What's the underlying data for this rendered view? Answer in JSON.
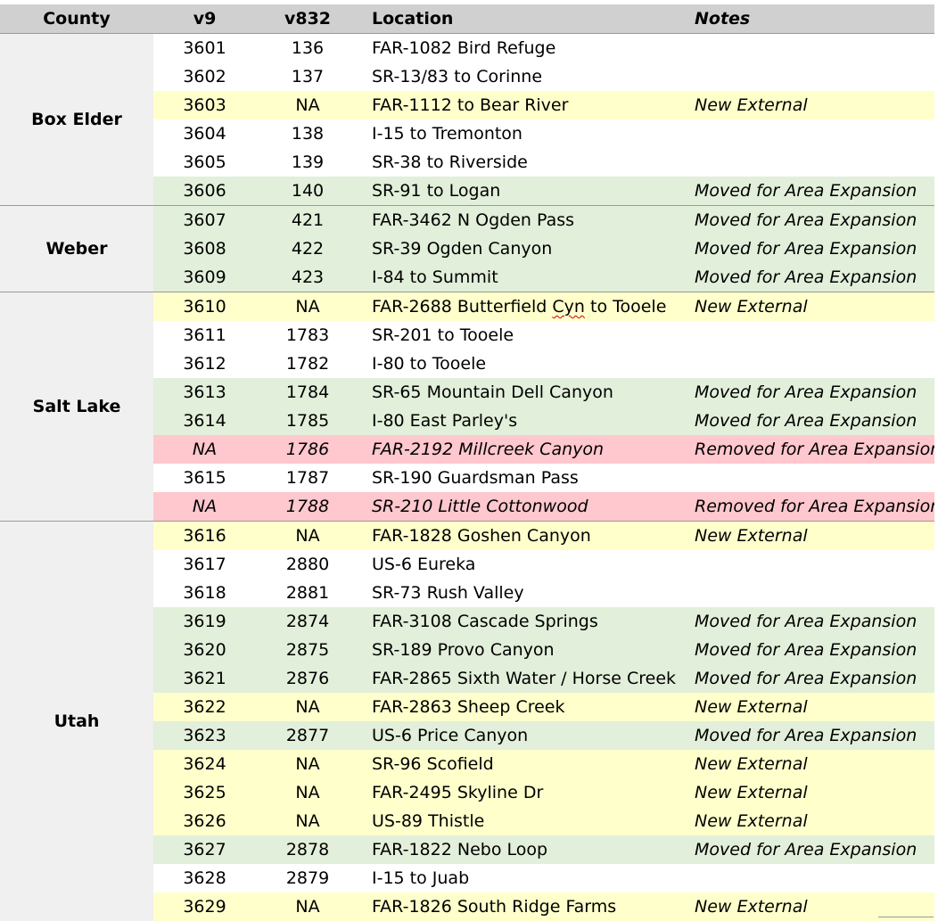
{
  "headers": {
    "county": "County",
    "v9": "v9",
    "v832": "v832",
    "location": "Location",
    "notes": "Notes"
  },
  "colors": {
    "header": "#d0d0d0",
    "county_cell": "#f0f0f0",
    "new_external": "#ffffcc",
    "moved": "#e2efda",
    "removed": "#ffc7ce"
  },
  "groups": [
    {
      "county": "Box Elder",
      "rows": [
        {
          "v9": "3601",
          "v832": "136",
          "location": "FAR-1082 Bird Refuge",
          "notes": "",
          "status": "plain"
        },
        {
          "v9": "3602",
          "v832": "137",
          "location": "SR-13/83 to Corinne",
          "notes": "",
          "status": "plain"
        },
        {
          "v9": "3603",
          "v832": "NA",
          "location": "FAR-1112 to Bear River",
          "notes": "New External",
          "status": "new"
        },
        {
          "v9": "3604",
          "v832": "138",
          "location": "I-15 to Tremonton",
          "notes": "",
          "status": "plain"
        },
        {
          "v9": "3605",
          "v832": "139",
          "location": "SR-38 to Riverside",
          "notes": "",
          "status": "plain"
        },
        {
          "v9": "3606",
          "v832": "140",
          "location": "SR-91 to Logan",
          "notes": "Moved for Area Expansion",
          "status": "moved"
        }
      ]
    },
    {
      "county": "Weber",
      "rows": [
        {
          "v9": "3607",
          "v832": "421",
          "location": "FAR-3462 N Ogden Pass",
          "notes": "Moved for Area Expansion",
          "status": "moved"
        },
        {
          "v9": "3608",
          "v832": "422",
          "location": "SR-39 Ogden Canyon",
          "notes": "Moved for Area Expansion",
          "status": "moved"
        },
        {
          "v9": "3609",
          "v832": "423",
          "location": "I-84 to Summit",
          "notes": "Moved for Area Expansion",
          "status": "moved"
        }
      ]
    },
    {
      "county": "Salt Lake",
      "rows": [
        {
          "v9": "3610",
          "v832": "NA",
          "location": "FAR-2688 Butterfield Cyn to Tooele",
          "notes": "New External",
          "status": "new"
        },
        {
          "v9": "3611",
          "v832": "1783",
          "location": "SR-201 to Tooele",
          "notes": "",
          "status": "plain"
        },
        {
          "v9": "3612",
          "v832": "1782",
          "location": "I-80 to Tooele",
          "notes": "",
          "status": "plain"
        },
        {
          "v9": "3613",
          "v832": "1784",
          "location": "SR-65 Mountain Dell Canyon",
          "notes": "Moved for Area Expansion",
          "status": "moved"
        },
        {
          "v9": "3614",
          "v832": "1785",
          "location": "I-80 East Parley's",
          "notes": "Moved for Area Expansion",
          "status": "moved"
        },
        {
          "v9": "NA",
          "v832": "1786",
          "location": "FAR-2192 Millcreek Canyon",
          "notes": "Removed for Area Expansion",
          "status": "removed"
        },
        {
          "v9": "3615",
          "v832": "1787",
          "location": "SR-190 Guardsman Pass",
          "notes": "",
          "status": "plain"
        },
        {
          "v9": "NA",
          "v832": "1788",
          "location": "SR-210 Little Cottonwood",
          "notes": "Removed for Area Expansion",
          "status": "removed"
        }
      ]
    },
    {
      "county": "Utah",
      "rows": [
        {
          "v9": "3616",
          "v832": "NA",
          "location": "FAR-1828 Goshen Canyon",
          "notes": "New External",
          "status": "new"
        },
        {
          "v9": "3617",
          "v832": "2880",
          "location": "US-6 Eureka",
          "notes": "",
          "status": "plain"
        },
        {
          "v9": "3618",
          "v832": "2881",
          "location": "SR-73 Rush Valley",
          "notes": "",
          "status": "plain"
        },
        {
          "v9": "3619",
          "v832": "2874",
          "location": "FAR-3108 Cascade Springs",
          "notes": "Moved for Area Expansion",
          "status": "moved"
        },
        {
          "v9": "3620",
          "v832": "2875",
          "location": "SR-189 Provo Canyon",
          "notes": "Moved for Area Expansion",
          "status": "moved"
        },
        {
          "v9": "3621",
          "v832": "2876",
          "location": "FAR-2865 Sixth Water / Horse Creek",
          "notes": "Moved for Area Expansion",
          "status": "moved"
        },
        {
          "v9": "3622",
          "v832": "NA",
          "location": "FAR-2863 Sheep Creek",
          "notes": "New External",
          "status": "new"
        },
        {
          "v9": "3623",
          "v832": "2877",
          "location": "US-6 Price Canyon",
          "notes": "Moved for Area Expansion",
          "status": "moved"
        },
        {
          "v9": "3624",
          "v832": "NA",
          "location": "SR-96 Scofield",
          "notes": "New External",
          "status": "new"
        },
        {
          "v9": "3625",
          "v832": "NA",
          "location": "FAR-2495 Skyline Dr",
          "notes": "New External",
          "status": "new"
        },
        {
          "v9": "3626",
          "v832": "NA",
          "location": "US-89 Thistle",
          "notes": "New External",
          "status": "new"
        },
        {
          "v9": "3627",
          "v832": "2878",
          "location": "FAR-1822 Nebo Loop",
          "notes": "Moved for Area Expansion",
          "status": "moved"
        },
        {
          "v9": "3628",
          "v832": "2879",
          "location": "I-15 to Juab",
          "notes": "",
          "status": "plain"
        },
        {
          "v9": "3629",
          "v832": "NA",
          "location": "FAR-1826 South Ridge Farms",
          "notes": "New External",
          "status": "new"
        }
      ]
    }
  ]
}
